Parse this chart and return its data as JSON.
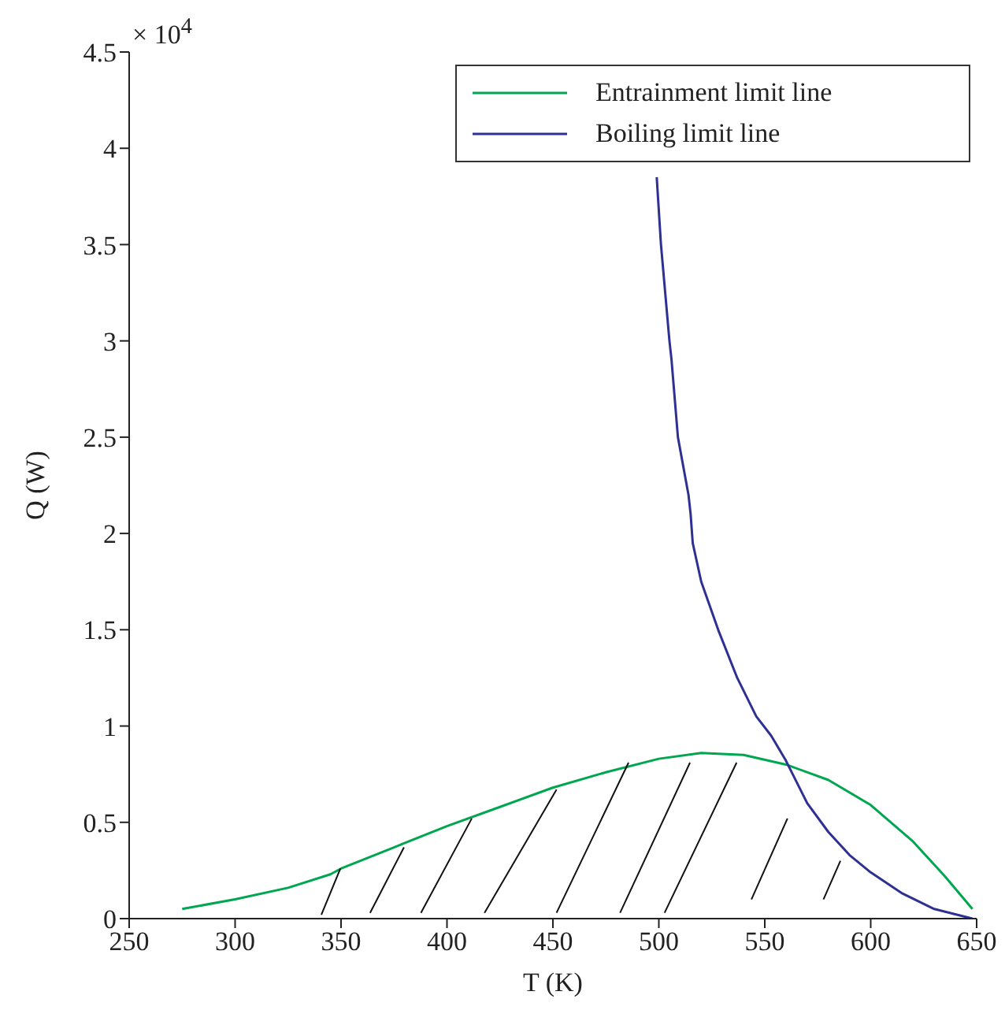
{
  "chart_data": {
    "type": "line",
    "xlabel": "T (K)",
    "ylabel": "Q (W)",
    "annotations": [
      "× 10$^{4}$"
    ],
    "xlim": [
      250,
      650
    ],
    "xticks": [
      250,
      300,
      350,
      400,
      450,
      500,
      550,
      600,
      650
    ],
    "ylim": [
      0,
      4.5
    ],
    "yticks": [
      0,
      0.5,
      1,
      1.5,
      2,
      2.5,
      3,
      3.5,
      4,
      4.5
    ],
    "grid": false,
    "legend": "top right",
    "marker": "none",
    "line_style": "solid",
    "series": [
      {
        "name": "Entrainment limit line",
        "color": "#00a650",
        "x": [
          275,
          300,
          325,
          345,
          350,
          375,
          400,
          425,
          450,
          475,
          500,
          520,
          540,
          560,
          580,
          600,
          620,
          635,
          648
        ],
        "values": [
          0.05,
          0.1,
          0.16,
          0.23,
          0.26,
          0.37,
          0.48,
          0.58,
          0.68,
          0.76,
          0.83,
          0.86,
          0.85,
          0.8,
          0.72,
          0.59,
          0.4,
          0.22,
          0.05
        ]
      },
      {
        "name": "Boiling limit line",
        "color": "#2e3192",
        "x": [
          499,
          501,
          505,
          506,
          509,
          514,
          515,
          516,
          520,
          528,
          537,
          546,
          553,
          560,
          570,
          580,
          590,
          600,
          615,
          630,
          648
        ],
        "values": [
          3.85,
          3.5,
          3.0,
          2.9,
          2.5,
          2.2,
          2.1,
          1.95,
          1.75,
          1.5,
          1.25,
          1.05,
          0.95,
          0.82,
          0.6,
          0.45,
          0.33,
          0.24,
          0.13,
          0.05,
          0.0
        ]
      }
    ]
  }
}
